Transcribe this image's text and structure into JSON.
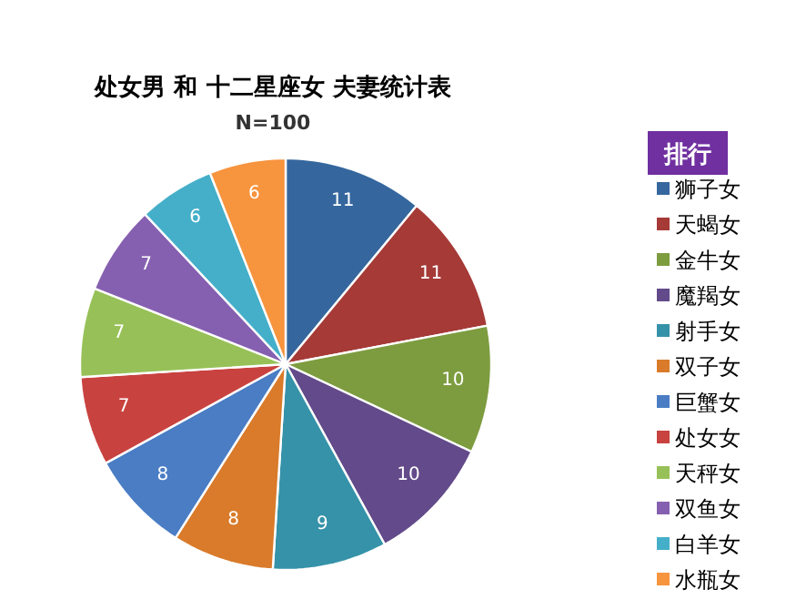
{
  "chart_data": {
    "type": "pie",
    "title": "处女男 和 十二星座女 夫妻统计表",
    "subtitle": "N=100",
    "legend_title": "排行",
    "legend": "right",
    "data_labels": true,
    "categories": [
      "狮子女",
      "天蝎女",
      "金牛女",
      "魔羯女",
      "射手女",
      "双子女",
      "巨蟹女",
      "处女女",
      "天秤女",
      "双鱼女",
      "白羊女",
      "水瓶女"
    ],
    "values": [
      11,
      11,
      10,
      10,
      9,
      8,
      8,
      7,
      7,
      7,
      6,
      6
    ],
    "colors": [
      "#35679e",
      "#a53a37",
      "#7d9c3f",
      "#634a8a",
      "#3592a8",
      "#d97b2a",
      "#4a7dc4",
      "#c8423f",
      "#97c158",
      "#8660b0",
      "#45afc9",
      "#f7943e"
    ]
  }
}
